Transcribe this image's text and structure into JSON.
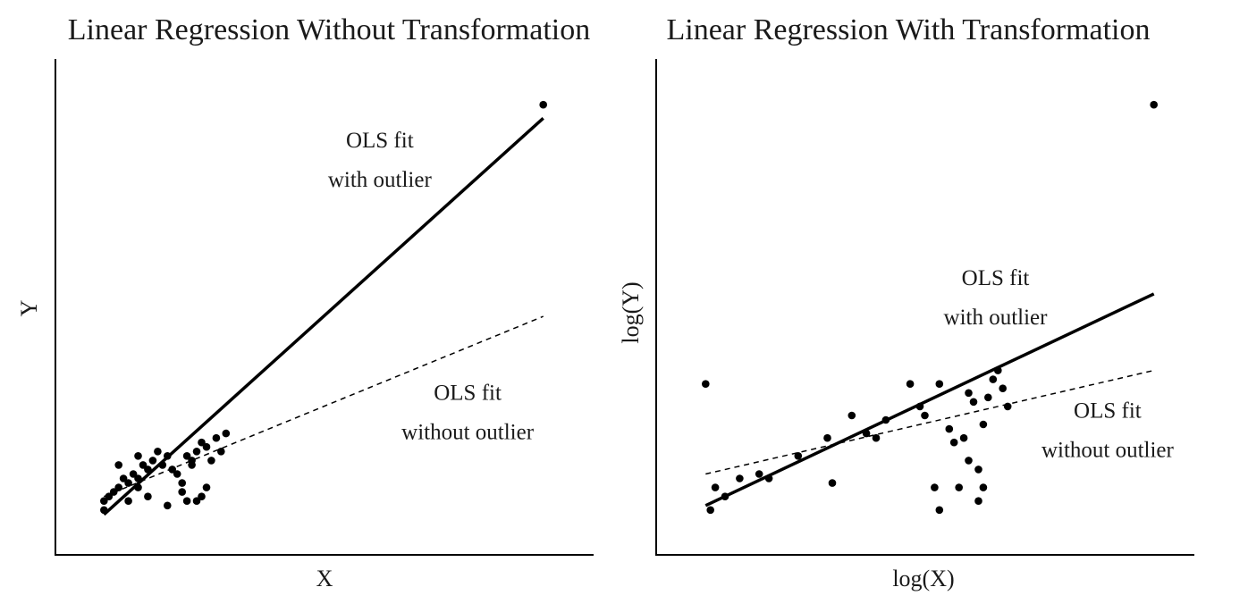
{
  "chart_data": [
    {
      "type": "scatter",
      "title": "Linear Regression Without Transformation",
      "xlabel": "X",
      "ylabel": "Y",
      "xlim": [
        0,
        100
      ],
      "ylim": [
        0,
        100
      ],
      "grid": false,
      "points": [
        [
          5,
          5
        ],
        [
          5,
          7
        ],
        [
          6,
          8
        ],
        [
          7,
          9
        ],
        [
          8,
          10
        ],
        [
          9,
          12
        ],
        [
          8,
          15
        ],
        [
          10,
          7
        ],
        [
          10,
          11
        ],
        [
          11,
          13
        ],
        [
          12,
          12
        ],
        [
          13,
          15
        ],
        [
          12,
          17
        ],
        [
          14,
          14
        ],
        [
          15,
          16
        ],
        [
          16,
          18
        ],
        [
          17,
          15
        ],
        [
          18,
          17
        ],
        [
          19,
          14
        ],
        [
          20,
          13
        ],
        [
          21,
          11
        ],
        [
          22,
          17
        ],
        [
          23,
          15
        ],
        [
          24,
          18
        ],
        [
          25,
          20
        ],
        [
          26,
          19
        ],
        [
          27,
          16
        ],
        [
          28,
          21
        ],
        [
          30,
          22
        ],
        [
          29,
          18
        ],
        [
          23,
          16
        ],
        [
          21,
          9
        ],
        [
          22,
          7
        ],
        [
          24,
          7
        ],
        [
          25,
          8
        ],
        [
          26,
          10
        ],
        [
          18,
          6
        ],
        [
          14,
          8
        ],
        [
          12,
          10
        ],
        [
          95,
          95
        ]
      ],
      "fits": [
        {
          "name": "OLS fit with outlier",
          "style": "solid",
          "x": [
            5,
            95
          ],
          "y": [
            4,
            92
          ]
        },
        {
          "name": "OLS fit without outlier",
          "style": "dashed",
          "x": [
            5,
            95
          ],
          "y": [
            8,
            48
          ]
        }
      ],
      "annotations": [
        {
          "lines": [
            "OLS fit",
            "with outlier"
          ],
          "x": 61.5,
          "y": 85.5
        },
        {
          "lines": [
            "OLS fit",
            "without outlier"
          ],
          "x": 79.5,
          "y": 29.5
        }
      ]
    },
    {
      "type": "scatter",
      "title": "Linear Regression With Transformation",
      "xlabel": "log(X)",
      "ylabel": "log(Y)",
      "xlim": [
        0,
        100
      ],
      "ylim": [
        0,
        100
      ],
      "grid": false,
      "points": [
        [
          5,
          33
        ],
        [
          6,
          5
        ],
        [
          7,
          10
        ],
        [
          9,
          8
        ],
        [
          12,
          12
        ],
        [
          16,
          13
        ],
        [
          18,
          12
        ],
        [
          24,
          17
        ],
        [
          30,
          21
        ],
        [
          31,
          11
        ],
        [
          35,
          26
        ],
        [
          38,
          22
        ],
        [
          40,
          21
        ],
        [
          42,
          25
        ],
        [
          47,
          33
        ],
        [
          49,
          28
        ],
        [
          50,
          26
        ],
        [
          52,
          10
        ],
        [
          53,
          33
        ],
        [
          55,
          23
        ],
        [
          56,
          20
        ],
        [
          57,
          10
        ],
        [
          58,
          21
        ],
        [
          59,
          16
        ],
        [
          60,
          29
        ],
        [
          61,
          14
        ],
        [
          62,
          10
        ],
        [
          63,
          30
        ],
        [
          64,
          34
        ],
        [
          65,
          36
        ],
        [
          66,
          32
        ],
        [
          67,
          28
        ],
        [
          53,
          5
        ],
        [
          61,
          7
        ],
        [
          62,
          24
        ],
        [
          59,
          31
        ],
        [
          97,
          95
        ]
      ],
      "fits": [
        {
          "name": "OLS fit with outlier",
          "style": "solid",
          "x": [
            5,
            97
          ],
          "y": [
            6,
            53
          ]
        },
        {
          "name": "OLS fit without outlier",
          "style": "dashed",
          "x": [
            5,
            97
          ],
          "y": [
            13,
            36
          ]
        }
      ],
      "annotations": [
        {
          "lines": [
            "OLS fit",
            "with outlier"
          ],
          "x": 64.5,
          "y": 55
        },
        {
          "lines": [
            "OLS fit",
            "without outlier"
          ],
          "x": 87.5,
          "y": 25.5
        }
      ]
    }
  ]
}
